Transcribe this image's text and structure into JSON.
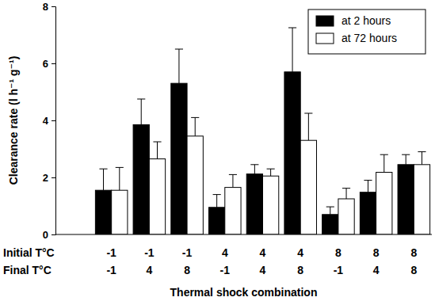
{
  "chart_data": {
    "type": "bar",
    "x_label": "Thermal shock combination",
    "y_label": "Clearance rate (l h⁻¹ g⁻¹)",
    "category_row_labels": [
      "Initial T°C",
      "Final T°C"
    ],
    "categories": [
      [
        -1,
        -1
      ],
      [
        -1,
        4
      ],
      [
        -1,
        8
      ],
      [
        4,
        -1
      ],
      [
        4,
        4
      ],
      [
        4,
        8
      ],
      [
        8,
        -1
      ],
      [
        8,
        4
      ],
      [
        8,
        8
      ]
    ],
    "series": [
      {
        "name": "at 2 hours",
        "color": "#000000",
        "values": [
          1.55,
          3.85,
          5.3,
          0.95,
          2.12,
          5.7,
          0.7,
          1.48,
          2.45
        ],
        "errors": [
          0.75,
          0.9,
          1.2,
          0.45,
          0.33,
          1.55,
          0.27,
          0.42,
          0.35
        ]
      },
      {
        "name": "at 72 hours",
        "color": "#ffffff",
        "values": [
          1.55,
          2.65,
          3.45,
          1.65,
          2.05,
          3.3,
          1.25,
          2.18,
          2.45
        ],
        "errors": [
          0.8,
          0.6,
          0.65,
          0.45,
          0.25,
          0.95,
          0.37,
          0.62,
          0.45
        ]
      }
    ],
    "ylim": [
      0,
      8
    ],
    "yticks": [
      0,
      2,
      4,
      6,
      8
    ],
    "grid": false,
    "legend": "upper right"
  }
}
